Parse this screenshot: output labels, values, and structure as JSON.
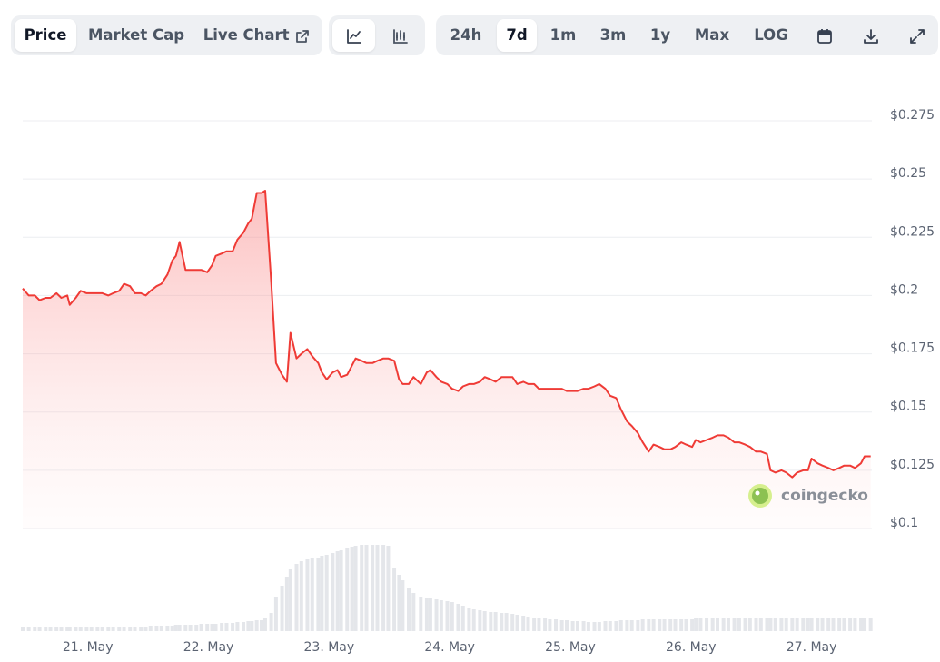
{
  "toolbar": {
    "tabs": [
      "Price",
      "Market Cap",
      "Live Chart"
    ],
    "ranges": [
      "24h",
      "7d",
      "1m",
      "3m",
      "1y",
      "Max",
      "LOG"
    ]
  },
  "chart_data": {
    "type": "line",
    "watermark": "coingecko",
    "color": "#ef3b36",
    "volume_color": "#e4e6ea",
    "xlim": [
      20.46,
      27.5
    ],
    "ylim": [
      0.1,
      0.275
    ],
    "xticks": [
      {
        "value": 21,
        "label": "21. May"
      },
      {
        "value": 22,
        "label": "22. May"
      },
      {
        "value": 23,
        "label": "23. May"
      },
      {
        "value": 24,
        "label": "24. May"
      },
      {
        "value": 25,
        "label": "25. May"
      },
      {
        "value": 26,
        "label": "26. May"
      },
      {
        "value": 27,
        "label": "27. May"
      }
    ],
    "yticks": [
      {
        "value": 0.1,
        "label": "$0.1"
      },
      {
        "value": 0.125,
        "label": "$0.125"
      },
      {
        "value": 0.15,
        "label": "$0.15"
      },
      {
        "value": 0.175,
        "label": "$0.175"
      },
      {
        "value": 0.2,
        "label": "$0.2"
      },
      {
        "value": 0.225,
        "label": "$0.225"
      },
      {
        "value": 0.25,
        "label": "$0.25"
      },
      {
        "value": 0.275,
        "label": "$0.275"
      }
    ],
    "grid": true,
    "x": [
      20.46,
      20.51,
      20.56,
      20.6,
      20.65,
      20.69,
      20.74,
      20.78,
      20.83,
      20.85,
      20.9,
      20.94,
      20.99,
      21.03,
      21.08,
      21.12,
      21.17,
      21.21,
      21.26,
      21.3,
      21.35,
      21.39,
      21.44,
      21.48,
      21.52,
      21.57,
      21.61,
      21.66,
      21.7,
      21.73,
      21.76,
      21.81,
      21.85,
      21.9,
      21.94,
      21.99,
      22.03,
      22.06,
      22.11,
      22.15,
      22.2,
      22.24,
      22.29,
      22.33,
      22.36,
      22.4,
      22.44,
      22.47,
      22.52,
      22.56,
      22.61,
      22.65,
      22.68,
      22.73,
      22.77,
      22.82,
      22.86,
      22.91,
      22.94,
      22.98,
      23.03,
      23.07,
      23.1,
      23.15,
      23.19,
      23.22,
      23.27,
      23.31,
      23.36,
      23.4,
      23.45,
      23.49,
      23.54,
      23.58,
      23.61,
      23.66,
      23.7,
      23.76,
      23.81,
      23.84,
      23.89,
      23.93,
      23.98,
      24.02,
      24.07,
      24.11,
      24.16,
      24.2,
      24.25,
      24.29,
      24.34,
      24.38,
      24.43,
      24.47,
      24.52,
      24.56,
      24.61,
      24.65,
      24.7,
      24.74,
      24.79,
      24.83,
      24.88,
      24.93,
      24.97,
      25.02,
      25.06,
      25.11,
      25.15,
      25.2,
      25.24,
      25.29,
      25.33,
      25.38,
      25.42,
      25.47,
      25.51,
      25.56,
      25.6,
      25.65,
      25.69,
      25.74,
      25.78,
      25.83,
      25.87,
      25.92,
      25.96,
      26.01,
      26.04,
      26.08,
      26.13,
      26.18,
      26.22,
      26.27,
      26.31,
      26.36,
      26.4,
      26.45,
      26.49,
      26.54,
      26.58,
      26.63,
      26.66,
      26.7,
      26.75,
      26.79,
      26.84,
      26.88,
      26.93,
      26.97,
      27.0,
      27.05,
      27.09,
      27.14,
      27.18,
      27.23,
      27.27,
      27.32,
      27.36,
      27.41,
      27.44,
      27.49
    ],
    "values": [
      0.203,
      0.2,
      0.2,
      0.198,
      0.199,
      0.199,
      0.201,
      0.199,
      0.2,
      0.196,
      0.199,
      0.202,
      0.201,
      0.201,
      0.201,
      0.201,
      0.2,
      0.201,
      0.202,
      0.205,
      0.204,
      0.201,
      0.201,
      0.2,
      0.202,
      0.204,
      0.205,
      0.209,
      0.215,
      0.217,
      0.223,
      0.211,
      0.211,
      0.211,
      0.211,
      0.21,
      0.213,
      0.217,
      0.218,
      0.219,
      0.219,
      0.224,
      0.227,
      0.231,
      0.233,
      0.244,
      0.244,
      0.245,
      0.206,
      0.171,
      0.166,
      0.163,
      0.184,
      0.173,
      0.175,
      0.177,
      0.174,
      0.171,
      0.167,
      0.164,
      0.167,
      0.168,
      0.165,
      0.166,
      0.17,
      0.173,
      0.172,
      0.171,
      0.171,
      0.172,
      0.173,
      0.173,
      0.172,
      0.164,
      0.162,
      0.162,
      0.165,
      0.162,
      0.167,
      0.168,
      0.165,
      0.163,
      0.162,
      0.16,
      0.159,
      0.161,
      0.162,
      0.162,
      0.163,
      0.165,
      0.164,
      0.163,
      0.165,
      0.165,
      0.165,
      0.162,
      0.163,
      0.162,
      0.162,
      0.16,
      0.16,
      0.16,
      0.16,
      0.16,
      0.159,
      0.159,
      0.159,
      0.16,
      0.16,
      0.161,
      0.162,
      0.16,
      0.157,
      0.156,
      0.151,
      0.146,
      0.144,
      0.141,
      0.137,
      0.133,
      0.136,
      0.135,
      0.134,
      0.134,
      0.135,
      0.137,
      0.136,
      0.135,
      0.138,
      0.137,
      0.138,
      0.139,
      0.14,
      0.14,
      0.139,
      0.137,
      0.137,
      0.136,
      0.135,
      0.133,
      0.133,
      0.132,
      0.125,
      0.124,
      0.125,
      0.124,
      0.122,
      0.124,
      0.125,
      0.125,
      0.13,
      0.128,
      0.127,
      0.126,
      0.125,
      0.126,
      0.127,
      0.127,
      0.126,
      0.128,
      0.131,
      0.131
    ],
    "volume": [
      5,
      5,
      5,
      5,
      5,
      5,
      5,
      5,
      5,
      5,
      5,
      5,
      5,
      5,
      5,
      5,
      5,
      5,
      5,
      5,
      5,
      5,
      5,
      5,
      6,
      6,
      6,
      6,
      6,
      7,
      7,
      7,
      7,
      7,
      8,
      8,
      8,
      8,
      9,
      9,
      9,
      10,
      10,
      11,
      11,
      12,
      12,
      14,
      20,
      38,
      50,
      60,
      68,
      74,
      77,
      79,
      80,
      81,
      83,
      84,
      86,
      88,
      89,
      91,
      93,
      94,
      95,
      95,
      95,
      95,
      95,
      94,
      70,
      62,
      56,
      48,
      42,
      38,
      37,
      36,
      35,
      34,
      33,
      32,
      30,
      28,
      26,
      24,
      23,
      22,
      21,
      21,
      20,
      20,
      19,
      18,
      17,
      16,
      15,
      14,
      14,
      13,
      13,
      12,
      12,
      11,
      11,
      11,
      10,
      10,
      10,
      11,
      11,
      11,
      12,
      12,
      12,
      12,
      13,
      13,
      13,
      13,
      13,
      13,
      13,
      13,
      13,
      13,
      14,
      14,
      14,
      14,
      14,
      14,
      14,
      14,
      14,
      14,
      14,
      14,
      14,
      14,
      15,
      15,
      15,
      15,
      15,
      15,
      15,
      15,
      15,
      15,
      15,
      15,
      15,
      15,
      15,
      15,
      15,
      15,
      15,
      15
    ]
  }
}
